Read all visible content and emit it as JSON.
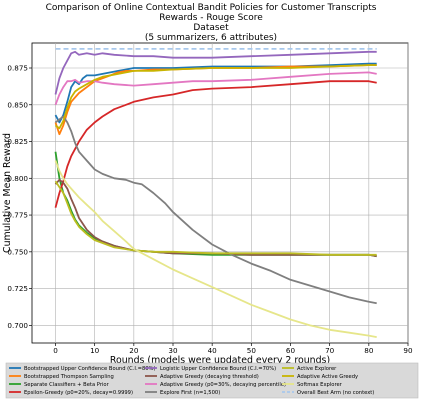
{
  "chart_data": {
    "type": "line",
    "title": [
      "Comparison of Online Contextual Bandit Policies for Customer Transcripts",
      "Rewards - Rouge Score",
      "Dataset",
      "(5 summarizers, 6 attributes)"
    ],
    "xlabel": "Rounds (models were updated every 2 rounds)",
    "ylabel": "Cumulative Mean Reward",
    "xlim": [
      -6,
      90
    ],
    "ylim": [
      0.688,
      0.892
    ],
    "xticks": [
      "0",
      "10",
      "20",
      "30",
      "40",
      "50",
      "60",
      "70",
      "80",
      "90"
    ],
    "yticks": [
      "0.700",
      "0.725",
      "0.750",
      "0.775",
      "0.800",
      "0.825",
      "0.850",
      "0.875"
    ],
    "grid": true,
    "legend_position": "bottom",
    "series": [
      {
        "name": "Bootstrapped Upper Confidence Bound (C.I.=80%)",
        "color": "#1f77b4",
        "points": [
          [
            0,
            0.843
          ],
          [
            1,
            0.838
          ],
          [
            2,
            0.843
          ],
          [
            3,
            0.852
          ],
          [
            4,
            0.862
          ],
          [
            5,
            0.866
          ],
          [
            6,
            0.864
          ],
          [
            7,
            0.868
          ],
          [
            8,
            0.87
          ],
          [
            10,
            0.87
          ],
          [
            12,
            0.871
          ],
          [
            14,
            0.872
          ],
          [
            16,
            0.873
          ],
          [
            18,
            0.874
          ],
          [
            20,
            0.875
          ],
          [
            25,
            0.875
          ],
          [
            30,
            0.875
          ],
          [
            40,
            0.876
          ],
          [
            50,
            0.876
          ],
          [
            60,
            0.876
          ],
          [
            70,
            0.877
          ],
          [
            80,
            0.878
          ],
          [
            82,
            0.878
          ]
        ]
      },
      {
        "name": "Bootstrapped Thompson Sampling",
        "color": "#ff7f0e",
        "points": [
          [
            0,
            0.838
          ],
          [
            1,
            0.83
          ],
          [
            2,
            0.836
          ],
          [
            3,
            0.845
          ],
          [
            4,
            0.852
          ],
          [
            5,
            0.855
          ],
          [
            6,
            0.858
          ],
          [
            8,
            0.862
          ],
          [
            10,
            0.866
          ],
          [
            12,
            0.868
          ],
          [
            14,
            0.87
          ],
          [
            16,
            0.872
          ],
          [
            18,
            0.873
          ],
          [
            20,
            0.873
          ],
          [
            25,
            0.874
          ],
          [
            30,
            0.874
          ],
          [
            40,
            0.875
          ],
          [
            50,
            0.875
          ],
          [
            60,
            0.876
          ],
          [
            70,
            0.876
          ],
          [
            80,
            0.877
          ],
          [
            82,
            0.877
          ]
        ]
      },
      {
        "name": "Separate Classifiers + Beta Prior",
        "color": "#2ca02c",
        "points": [
          [
            0,
            0.818
          ],
          [
            1,
            0.8
          ],
          [
            2,
            0.79
          ],
          [
            3,
            0.785
          ],
          [
            4,
            0.778
          ],
          [
            5,
            0.772
          ],
          [
            6,
            0.768
          ],
          [
            8,
            0.763
          ],
          [
            10,
            0.759
          ],
          [
            12,
            0.757
          ],
          [
            15,
            0.754
          ],
          [
            18,
            0.752
          ],
          [
            20,
            0.751
          ],
          [
            25,
            0.75
          ],
          [
            30,
            0.749
          ],
          [
            40,
            0.748
          ],
          [
            50,
            0.748
          ],
          [
            60,
            0.748
          ],
          [
            70,
            0.748
          ],
          [
            80,
            0.748
          ],
          [
            82,
            0.747
          ]
        ]
      },
      {
        "name": "Epsilon-Greedy (p0=20%, decay=0.9999)",
        "color": "#d62728",
        "points": [
          [
            0,
            0.78
          ],
          [
            1,
            0.79
          ],
          [
            2,
            0.798
          ],
          [
            3,
            0.808
          ],
          [
            4,
            0.815
          ],
          [
            5,
            0.82
          ],
          [
            6,
            0.825
          ],
          [
            8,
            0.833
          ],
          [
            10,
            0.838
          ],
          [
            12,
            0.842
          ],
          [
            15,
            0.847
          ],
          [
            18,
            0.85
          ],
          [
            20,
            0.852
          ],
          [
            25,
            0.855
          ],
          [
            30,
            0.857
          ],
          [
            35,
            0.86
          ],
          [
            40,
            0.861
          ],
          [
            50,
            0.862
          ],
          [
            60,
            0.864
          ],
          [
            70,
            0.866
          ],
          [
            80,
            0.866
          ],
          [
            82,
            0.865
          ]
        ]
      },
      {
        "name": "Logistic Upper Confidence Bound (C.I.=70%)",
        "color": "#9467bd",
        "points": [
          [
            0,
            0.857
          ],
          [
            1,
            0.868
          ],
          [
            2,
            0.875
          ],
          [
            3,
            0.88
          ],
          [
            4,
            0.885
          ],
          [
            5,
            0.886
          ],
          [
            6,
            0.884
          ],
          [
            8,
            0.885
          ],
          [
            10,
            0.884
          ],
          [
            12,
            0.885
          ],
          [
            15,
            0.884
          ],
          [
            20,
            0.883
          ],
          [
            25,
            0.883
          ],
          [
            30,
            0.882
          ],
          [
            40,
            0.882
          ],
          [
            50,
            0.883
          ],
          [
            60,
            0.884
          ],
          [
            70,
            0.885
          ],
          [
            80,
            0.886
          ],
          [
            82,
            0.886
          ]
        ]
      },
      {
        "name": "Adaptive Greedy (decaying threshold)",
        "color": "#8c564b",
        "points": [
          [
            0,
            0.796
          ],
          [
            1,
            0.799
          ],
          [
            2,
            0.797
          ],
          [
            3,
            0.793
          ],
          [
            4,
            0.786
          ],
          [
            5,
            0.78
          ],
          [
            6,
            0.773
          ],
          [
            8,
            0.765
          ],
          [
            10,
            0.76
          ],
          [
            12,
            0.757
          ],
          [
            15,
            0.754
          ],
          [
            20,
            0.751
          ],
          [
            25,
            0.75
          ],
          [
            30,
            0.749
          ],
          [
            40,
            0.749
          ],
          [
            50,
            0.748
          ],
          [
            60,
            0.748
          ],
          [
            70,
            0.748
          ],
          [
            80,
            0.748
          ],
          [
            82,
            0.747
          ]
        ]
      },
      {
        "name": "Adaptive Greedy (p0=30%, decaying percentile)",
        "color": "#e377c2",
        "points": [
          [
            0,
            0.85
          ],
          [
            1,
            0.857
          ],
          [
            2,
            0.862
          ],
          [
            3,
            0.866
          ],
          [
            4,
            0.866
          ],
          [
            5,
            0.867
          ],
          [
            6,
            0.865
          ],
          [
            8,
            0.866
          ],
          [
            10,
            0.866
          ],
          [
            12,
            0.865
          ],
          [
            15,
            0.864
          ],
          [
            20,
            0.863
          ],
          [
            25,
            0.864
          ],
          [
            30,
            0.865
          ],
          [
            35,
            0.866
          ],
          [
            40,
            0.866
          ],
          [
            50,
            0.867
          ],
          [
            60,
            0.869
          ],
          [
            70,
            0.871
          ],
          [
            80,
            0.872
          ],
          [
            82,
            0.871
          ]
        ]
      },
      {
        "name": "Explore First (n=1,500)",
        "color": "#7f7f7f",
        "points": [
          [
            0,
            0.838
          ],
          [
            1,
            0.84
          ],
          [
            2,
            0.842
          ],
          [
            3,
            0.838
          ],
          [
            4,
            0.832
          ],
          [
            5,
            0.824
          ],
          [
            6,
            0.818
          ],
          [
            8,
            0.812
          ],
          [
            10,
            0.806
          ],
          [
            12,
            0.803
          ],
          [
            15,
            0.8
          ],
          [
            18,
            0.799
          ],
          [
            20,
            0.797
          ],
          [
            22,
            0.796
          ],
          [
            25,
            0.79
          ],
          [
            28,
            0.783
          ],
          [
            30,
            0.777
          ],
          [
            35,
            0.765
          ],
          [
            40,
            0.755
          ],
          [
            45,
            0.748
          ],
          [
            50,
            0.742
          ],
          [
            55,
            0.737
          ],
          [
            60,
            0.731
          ],
          [
            65,
            0.727
          ],
          [
            70,
            0.723
          ],
          [
            75,
            0.719
          ],
          [
            80,
            0.716
          ],
          [
            82,
            0.715
          ]
        ]
      },
      {
        "name": "Active Explorer",
        "color": "#bcbd22",
        "points": [
          [
            0,
            0.798
          ],
          [
            1,
            0.794
          ],
          [
            2,
            0.79
          ],
          [
            3,
            0.783
          ],
          [
            4,
            0.776
          ],
          [
            5,
            0.771
          ],
          [
            6,
            0.767
          ],
          [
            8,
            0.762
          ],
          [
            10,
            0.758
          ],
          [
            12,
            0.756
          ],
          [
            15,
            0.753
          ],
          [
            20,
            0.751
          ],
          [
            25,
            0.75
          ],
          [
            30,
            0.75
          ],
          [
            40,
            0.749
          ],
          [
            50,
            0.749
          ],
          [
            60,
            0.749
          ],
          [
            70,
            0.748
          ],
          [
            80,
            0.748
          ],
          [
            82,
            0.748
          ]
        ]
      },
      {
        "name": "Adaptive Active Greedy",
        "color": "#c8b400",
        "points": [
          [
            0,
            0.836
          ],
          [
            1,
            0.834
          ],
          [
            2,
            0.839
          ],
          [
            3,
            0.848
          ],
          [
            4,
            0.855
          ],
          [
            5,
            0.859
          ],
          [
            6,
            0.861
          ],
          [
            8,
            0.864
          ],
          [
            10,
            0.867
          ],
          [
            12,
            0.869
          ],
          [
            14,
            0.87
          ],
          [
            16,
            0.871
          ],
          [
            18,
            0.872
          ],
          [
            20,
            0.873
          ],
          [
            25,
            0.873
          ],
          [
            30,
            0.874
          ],
          [
            40,
            0.875
          ],
          [
            50,
            0.875
          ],
          [
            60,
            0.875
          ],
          [
            70,
            0.876
          ],
          [
            80,
            0.877
          ],
          [
            82,
            0.877
          ]
        ]
      },
      {
        "name": "Softmax Explorer",
        "color": "#e6e68a",
        "points": [
          [
            0,
            0.812
          ],
          [
            1,
            0.805
          ],
          [
            2,
            0.8
          ],
          [
            3,
            0.796
          ],
          [
            4,
            0.793
          ],
          [
            5,
            0.79
          ],
          [
            6,
            0.787
          ],
          [
            8,
            0.782
          ],
          [
            10,
            0.777
          ],
          [
            12,
            0.771
          ],
          [
            15,
            0.764
          ],
          [
            18,
            0.757
          ],
          [
            20,
            0.752
          ],
          [
            25,
            0.745
          ],
          [
            30,
            0.738
          ],
          [
            35,
            0.732
          ],
          [
            40,
            0.726
          ],
          [
            45,
            0.72
          ],
          [
            50,
            0.714
          ],
          [
            55,
            0.709
          ],
          [
            60,
            0.704
          ],
          [
            65,
            0.7
          ],
          [
            70,
            0.697
          ],
          [
            75,
            0.695
          ],
          [
            80,
            0.693
          ],
          [
            82,
            0.692
          ]
        ]
      },
      {
        "name": "Overall Best Arm (no context)",
        "color": "#a8c8ec",
        "dashed": true,
        "points": [
          [
            0,
            0.888
          ],
          [
            82,
            0.888
          ]
        ]
      }
    ]
  }
}
